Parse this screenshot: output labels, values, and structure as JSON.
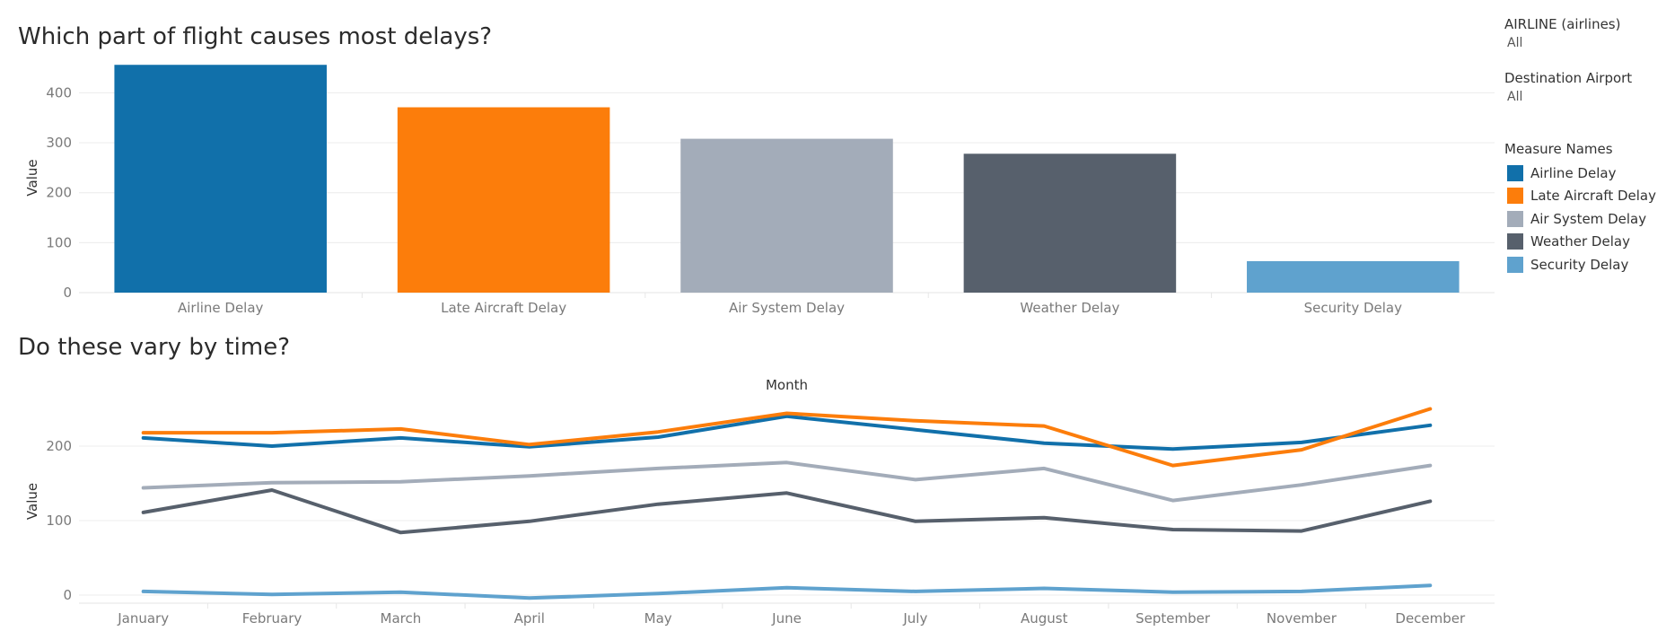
{
  "filters": [
    {
      "label": "AIRLINE (airlines)",
      "value": "All"
    },
    {
      "label": "Destination Airport",
      "value": "All"
    }
  ],
  "legend": {
    "title": "Measure Names",
    "items": [
      {
        "label": "Airline Delay",
        "color": "#1170aa"
      },
      {
        "label": "Late Aircraft Delay",
        "color": "#fc7d0b"
      },
      {
        "label": "Air System Delay",
        "color": "#a3acb9"
      },
      {
        "label": "Weather Delay",
        "color": "#57606c"
      },
      {
        "label": "Security Delay",
        "color": "#5fa2ce"
      }
    ]
  },
  "chart_data": [
    {
      "type": "bar",
      "title": "Which part of flight causes most delays?",
      "ylabel": "Value",
      "xlabel": "",
      "ylim": [
        0,
        460
      ],
      "yticks": [
        0,
        100,
        200,
        300,
        400
      ],
      "categories": [
        "Airline Delay",
        "Late Aircraft Delay",
        "Air System Delay",
        "Weather Delay",
        "Security Delay"
      ],
      "values": [
        456,
        371,
        308,
        278,
        63
      ],
      "colors": [
        "#1170aa",
        "#fc7d0b",
        "#a3acb9",
        "#57606c",
        "#5fa2ce"
      ]
    },
    {
      "type": "line",
      "title": "Do these vary by time?",
      "xlabel": "Month",
      "ylabel": "Value",
      "ylim": [
        0,
        255
      ],
      "yticks": [
        0,
        100,
        200
      ],
      "x": [
        "January",
        "February",
        "March",
        "April",
        "May",
        "June",
        "July",
        "August",
        "September",
        "November",
        "December"
      ],
      "series": [
        {
          "name": "Airline Delay",
          "color": "#1170aa",
          "values": [
            211,
            200,
            211,
            199,
            212,
            240,
            222,
            204,
            196,
            205,
            228
          ]
        },
        {
          "name": "Late Aircraft Delay",
          "color": "#fc7d0b",
          "values": [
            218,
            218,
            223,
            202,
            219,
            244,
            234,
            227,
            174,
            195,
            250
          ]
        },
        {
          "name": "Air System Delay",
          "color": "#a3acb9",
          "values": [
            144,
            151,
            152,
            160,
            170,
            178,
            155,
            170,
            127,
            148,
            174
          ]
        },
        {
          "name": "Weather Delay",
          "color": "#57606c",
          "values": [
            111,
            141,
            84,
            99,
            122,
            137,
            99,
            104,
            88,
            86,
            126
          ]
        },
        {
          "name": "Security Delay",
          "color": "#5fa2ce",
          "values": [
            5,
            1,
            4,
            -4,
            2,
            10,
            5,
            9,
            4,
            5,
            13
          ]
        }
      ]
    }
  ]
}
